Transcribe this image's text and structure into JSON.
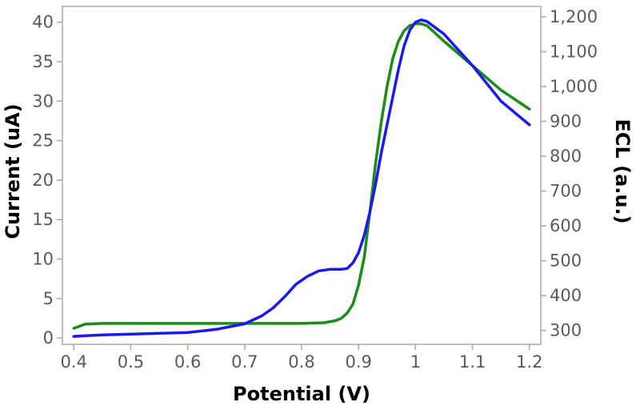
{
  "chart_data": {
    "type": "line",
    "xlabel": "Potential (V)",
    "ylabel": "Current (uA)",
    "y2label": "ECL (a.u.)",
    "xlim": [
      0.38,
      1.22
    ],
    "ylim": [
      -0.8,
      42.0
    ],
    "y2lim": [
      260,
      1230
    ],
    "x_ticks": [
      0.4,
      0.5,
      0.6,
      0.7,
      0.8,
      0.9,
      1.0,
      1.1,
      1.2
    ],
    "x_tick_labels": [
      "0.4",
      "0.5",
      "0.6",
      "0.7",
      "0.8",
      "0.9",
      "1",
      "1.1",
      "1.2"
    ],
    "y_ticks": [
      0,
      5,
      10,
      15,
      20,
      25,
      30,
      35,
      40
    ],
    "y_tick_labels": [
      "0",
      "5",
      "10",
      "15",
      "20",
      "25",
      "30",
      "35",
      "40"
    ],
    "y2_ticks": [
      300,
      400,
      500,
      600,
      700,
      800,
      900,
      1000,
      1100,
      1200
    ],
    "y2_tick_labels": [
      "300",
      "400",
      "500",
      "600",
      "700",
      "800",
      "900",
      "1,000",
      "1,100",
      "1,200"
    ],
    "grid": false,
    "series": [
      {
        "axis": "y2",
        "color": "#1a8c1a",
        "x": [
          0.4,
          0.42,
          0.45,
          0.5,
          0.6,
          0.7,
          0.8,
          0.84,
          0.86,
          0.87,
          0.88,
          0.89,
          0.9,
          0.91,
          0.92,
          0.93,
          0.94,
          0.95,
          0.96,
          0.97,
          0.98,
          0.99,
          1.0,
          1.01,
          1.02,
          1.05,
          1.1,
          1.15,
          1.2
        ],
        "y": [
          306,
          318,
          320,
          320,
          320,
          320,
          320,
          322,
          328,
          335,
          350,
          375,
          430,
          510,
          640,
          780,
          900,
          1000,
          1080,
          1130,
          1160,
          1175,
          1180,
          1180,
          1175,
          1130,
          1060,
          990,
          935
        ]
      },
      {
        "axis": "y",
        "color": "#1a1aee",
        "x": [
          0.4,
          0.42,
          0.45,
          0.5,
          0.55,
          0.6,
          0.65,
          0.7,
          0.73,
          0.75,
          0.77,
          0.79,
          0.81,
          0.83,
          0.85,
          0.87,
          0.88,
          0.89,
          0.9,
          0.91,
          0.92,
          0.93,
          0.94,
          0.95,
          0.96,
          0.97,
          0.98,
          0.99,
          1.0,
          1.01,
          1.02,
          1.05,
          1.1,
          1.15,
          1.2
        ],
        "y": [
          0.2,
          0.3,
          0.4,
          0.5,
          0.6,
          0.7,
          1.1,
          1.8,
          2.8,
          3.8,
          5.2,
          6.8,
          7.8,
          8.5,
          8.7,
          8.7,
          8.8,
          9.5,
          10.8,
          13.0,
          16.0,
          19.5,
          23.5,
          27.0,
          30.5,
          34.0,
          37.0,
          39.0,
          40.0,
          40.3,
          40.1,
          38.5,
          34.5,
          30.0,
          27.0
        ]
      }
    ]
  }
}
